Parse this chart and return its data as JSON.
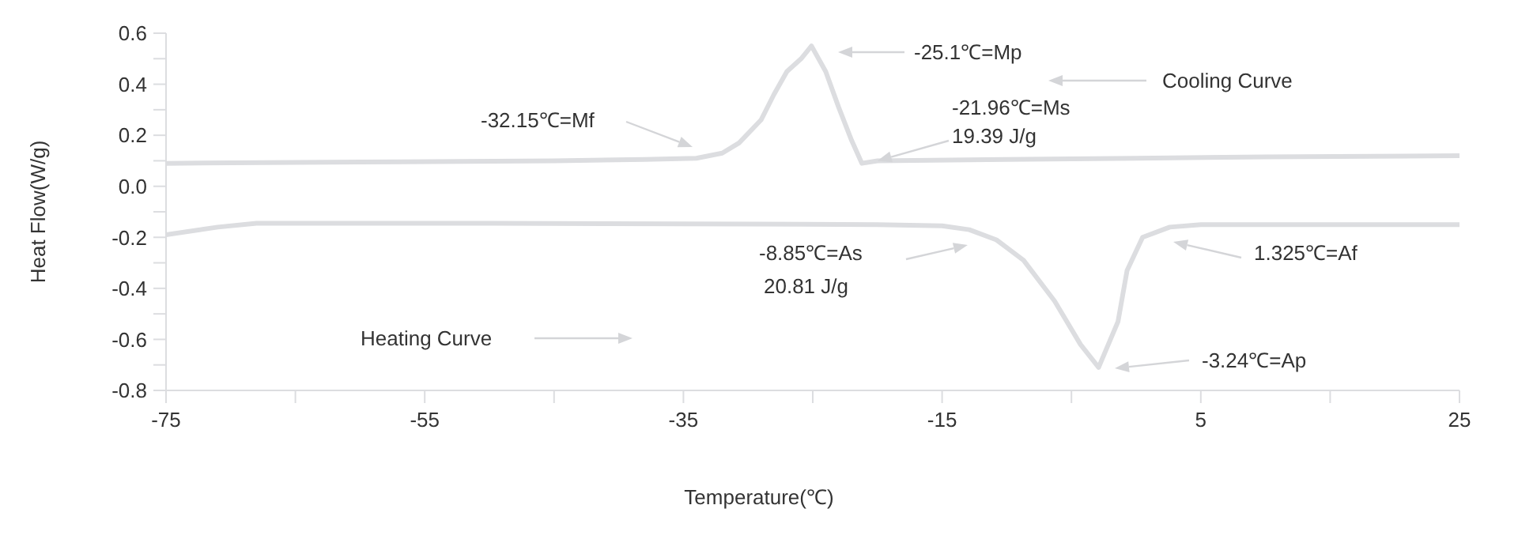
{
  "chart_data": {
    "type": "line",
    "xlabel": "Temperature(℃)",
    "ylabel": "Heat Flow(W/g)",
    "xlim": [
      -75,
      25
    ],
    "xticks": [
      -75,
      {
        "value": -65,
        "label": null
      },
      -55,
      {
        "value": -45,
        "label": null
      },
      -35,
      {
        "value": -25,
        "label": null
      },
      -15,
      {
        "value": -5,
        "label": null
      },
      5,
      {
        "value": 15,
        "label": null
      },
      25
    ],
    "ylim": [
      -0.8,
      0.6
    ],
    "yticks": [
      0.6,
      {
        "value": 0.5,
        "label": null
      },
      0.4,
      {
        "value": 0.3,
        "label": null
      },
      0.2,
      {
        "value": 0.1,
        "label": null
      },
      {
        "value": 0,
        "label": "0.0"
      },
      {
        "value": -0.1,
        "label": null
      },
      -0.2,
      {
        "value": -0.3,
        "label": null
      },
      -0.4,
      {
        "value": -0.5,
        "label": null
      },
      -0.6,
      {
        "value": -0.7,
        "label": null
      },
      -0.8
    ],
    "grid": false,
    "marker": "none",
    "line_style": "solid",
    "series": [
      {
        "color": "#dcdde0",
        "x": [
          -75,
          -60,
          -45,
          -38,
          -34,
          -32,
          -30.7,
          -29,
          -28,
          -27,
          -25.9,
          -25.1,
          -24,
          -23,
          -22,
          -21.2,
          -20,
          -10,
          0,
          10,
          25
        ],
        "values": [
          0.09,
          0.095,
          0.1,
          0.105,
          0.11,
          0.13,
          0.17,
          0.26,
          0.36,
          0.45,
          0.5,
          0.55,
          0.45,
          0.31,
          0.18,
          0.09,
          0.1,
          0.105,
          0.11,
          0.115,
          0.12
        ]
      },
      {
        "color": "#dcdde0",
        "x": [
          -75,
          -71,
          -68,
          -50,
          -30,
          -20,
          -15,
          -12.9,
          -10.8,
          -8.7,
          -6.3,
          -4.3,
          -2.9,
          -1.4,
          -0.7,
          0.5,
          2.6,
          5,
          10,
          25
        ],
        "values": [
          -0.19,
          -0.16,
          -0.145,
          -0.145,
          -0.148,
          -0.15,
          -0.155,
          -0.17,
          -0.21,
          -0.29,
          -0.45,
          -0.62,
          -0.71,
          -0.53,
          -0.33,
          -0.2,
          -0.16,
          -0.15,
          -0.15,
          -0.15
        ]
      }
    ],
    "annotations": [
      "-25.1℃=Mp",
      {
        "text": "-21.96℃=Ms",
        "x": -20,
        "y": 0.1
      },
      "19.39 J/g",
      "-32.15℃=Mf",
      "-8.85℃=As",
      "20.81 J/g",
      "1.325℃=Af",
      "-3.24℃=Ap",
      "Cooling Curve",
      "Heating Curve"
    ]
  }
}
